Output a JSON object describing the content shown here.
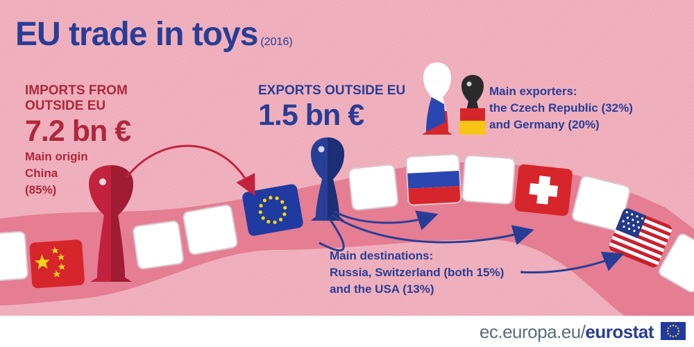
{
  "title": "EU trade in toys",
  "year": "(2016)",
  "imports": {
    "label": "IMPORTS FROM OUTSIDE EU",
    "value": "7.2 bn €",
    "origin_line1": "Main origin",
    "origin_line2": "China",
    "origin_line3": "(85%)"
  },
  "exports": {
    "label": "EXPORTS OUTSIDE EU",
    "value": "1.5 bn €"
  },
  "exporters": {
    "line1": "Main exporters:",
    "line2": "the Czech Republic (32%)",
    "line3": "and Germany (20%)"
  },
  "destinations": {
    "line1": "Main destinations:",
    "line2": "Russia, Switzerland (both 15%)",
    "line3": "and the USA (13%)"
  },
  "footer": {
    "url_prefix": "ec.europa.eu/",
    "brand": "eurostat"
  },
  "colors": {
    "background": "#efadbb",
    "eu_blue": "#283e96",
    "import_red": "#b0263c",
    "footer_grey": "#5b6b7a"
  },
  "icons": [
    "china-flag-icon",
    "eu-flag-icon",
    "russia-flag-icon",
    "switzerland-flag-icon",
    "usa-flag-icon",
    "red-pawn-icon",
    "blue-pawn-icon",
    "czech-pawn-icon",
    "german-pawn-icon",
    "arrow-icon"
  ]
}
